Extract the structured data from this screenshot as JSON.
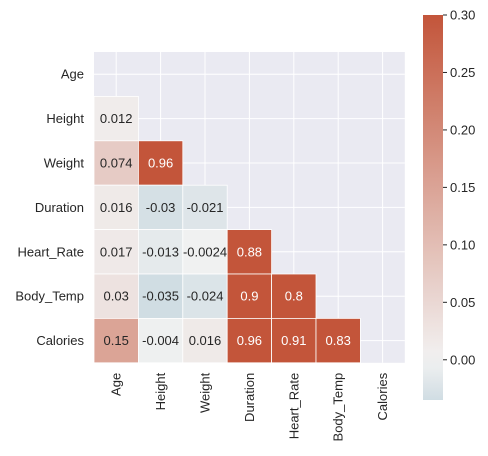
{
  "chart_data": {
    "type": "heatmap",
    "title": "",
    "xlabel": "",
    "ylabel": "",
    "variables": [
      "Age",
      "Height",
      "Weight",
      "Duration",
      "Heart_Rate",
      "Body_Temp",
      "Calories"
    ],
    "mask": "upper-triangle-including-diagonal",
    "cells": [
      {
        "row": "Height",
        "col": "Age",
        "value": 0.012,
        "label": "0.012"
      },
      {
        "row": "Weight",
        "col": "Age",
        "value": 0.074,
        "label": "0.074"
      },
      {
        "row": "Weight",
        "col": "Height",
        "value": 0.96,
        "label": "0.96"
      },
      {
        "row": "Duration",
        "col": "Age",
        "value": 0.016,
        "label": "0.016"
      },
      {
        "row": "Duration",
        "col": "Height",
        "value": -0.03,
        "label": "-0.03"
      },
      {
        "row": "Duration",
        "col": "Weight",
        "value": -0.021,
        "label": "-0.021"
      },
      {
        "row": "Heart_Rate",
        "col": "Age",
        "value": 0.017,
        "label": "0.017"
      },
      {
        "row": "Heart_Rate",
        "col": "Height",
        "value": -0.013,
        "label": "-0.013"
      },
      {
        "row": "Heart_Rate",
        "col": "Weight",
        "value": -0.0024,
        "label": "-0.0024"
      },
      {
        "row": "Heart_Rate",
        "col": "Duration",
        "value": 0.88,
        "label": "0.88"
      },
      {
        "row": "Body_Temp",
        "col": "Age",
        "value": 0.03,
        "label": "0.03"
      },
      {
        "row": "Body_Temp",
        "col": "Height",
        "value": -0.035,
        "label": "-0.035"
      },
      {
        "row": "Body_Temp",
        "col": "Weight",
        "value": -0.024,
        "label": "-0.024"
      },
      {
        "row": "Body_Temp",
        "col": "Duration",
        "value": 0.9,
        "label": "0.9"
      },
      {
        "row": "Body_Temp",
        "col": "Heart_Rate",
        "value": 0.8,
        "label": "0.8"
      },
      {
        "row": "Calories",
        "col": "Age",
        "value": 0.15,
        "label": "0.15"
      },
      {
        "row": "Calories",
        "col": "Height",
        "value": -0.004,
        "label": "-0.004"
      },
      {
        "row": "Calories",
        "col": "Weight",
        "value": 0.016,
        "label": "0.016"
      },
      {
        "row": "Calories",
        "col": "Duration",
        "value": 0.96,
        "label": "0.96"
      },
      {
        "row": "Calories",
        "col": "Heart_Rate",
        "value": 0.91,
        "label": "0.91"
      },
      {
        "row": "Calories",
        "col": "Body_Temp",
        "value": 0.83,
        "label": "0.83"
      }
    ],
    "colorbar": {
      "vmin": -0.035,
      "vmax": 0.3,
      "ticks": [
        0.0,
        0.05,
        0.1,
        0.15,
        0.2,
        0.25,
        0.3
      ],
      "tick_labels": [
        "0.00",
        "0.05",
        "0.10",
        "0.15",
        "0.20",
        "0.25",
        "0.30"
      ],
      "placement": "right"
    },
    "colormap": "diverging-blue-white-red",
    "colors": {
      "low": "#d0dde3",
      "mid": "#f2f2f2",
      "high": "#c3553a",
      "background": "#eaeaf2",
      "gridline": "#ffffff"
    },
    "grid": true
  }
}
